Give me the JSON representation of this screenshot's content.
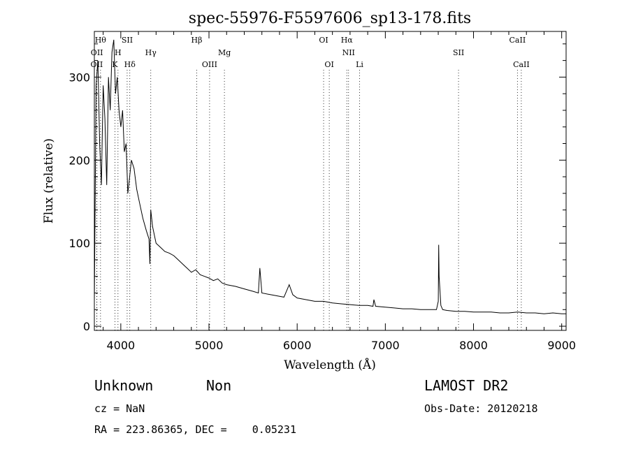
{
  "chart_data": {
    "type": "line",
    "title": "spec-55976-F5597606_sp13-178.fits",
    "xlabel": "Wavelength (Å)",
    "ylabel": "Flux (relative)",
    "xlim": [
      3700,
      9050
    ],
    "ylim": [
      -5,
      355
    ],
    "grid": false,
    "xticks": [
      4000,
      5000,
      6000,
      7000,
      8000,
      9000
    ],
    "yticks": [
      0,
      100,
      200,
      300
    ],
    "series": [
      {
        "x": [
          3700,
          3720,
          3740,
          3760,
          3780,
          3800,
          3820,
          3840,
          3860,
          3880,
          3900,
          3920,
          3940,
          3960,
          3980,
          4000,
          4020,
          4040,
          4060,
          4080,
          4100,
          4120,
          4150,
          4180,
          4210,
          4250,
          4290,
          4320,
          4330,
          4340,
          4360,
          4380,
          4400,
          4450,
          4500,
          4550,
          4600,
          4650,
          4700,
          4750,
          4800,
          4850,
          4900,
          4950,
          5000,
          5050,
          5100,
          5150,
          5200,
          5300,
          5400,
          5500,
          5560,
          5577,
          5600,
          5700,
          5800,
          5850,
          5890,
          5910,
          5950,
          6000,
          6100,
          6200,
          6300,
          6400,
          6500,
          6600,
          6700,
          6800,
          6860,
          6870,
          6890,
          7000,
          7100,
          7200,
          7300,
          7400,
          7500,
          7580,
          7600,
          7605,
          7610,
          7630,
          7650,
          7700,
          7800,
          7900,
          8000,
          8100,
          8200,
          8300,
          8400,
          8500,
          8600,
          8700,
          8800,
          8900,
          9000,
          9050
        ],
        "values": [
          30,
          290,
          320,
          220,
          170,
          290,
          250,
          170,
          300,
          260,
          330,
          345,
          280,
          300,
          260,
          240,
          260,
          210,
          220,
          160,
          180,
          200,
          190,
          165,
          150,
          130,
          115,
          105,
          75,
          140,
          120,
          110,
          100,
          95,
          90,
          88,
          85,
          80,
          75,
          70,
          65,
          68,
          62,
          60,
          58,
          55,
          57,
          52,
          50,
          48,
          45,
          42,
          40,
          70,
          40,
          38,
          36,
          35,
          45,
          50,
          38,
          34,
          32,
          30,
          30,
          28,
          27,
          26,
          25,
          25,
          24,
          32,
          24,
          23,
          22,
          21,
          21,
          20,
          20,
          20,
          30,
          98,
          60,
          25,
          20,
          19,
          18,
          18,
          17,
          17,
          17,
          16,
          16,
          17,
          16,
          16,
          15,
          16,
          15,
          15
        ]
      }
    ],
    "lines": [
      {
        "x": 3727,
        "label": "OII",
        "row": 2
      },
      {
        "x": 3729,
        "label": "OII",
        "row": 1
      },
      {
        "x": 3770,
        "label": "Hθ",
        "row": 0
      },
      {
        "x": 3933,
        "label": "K",
        "row": 2
      },
      {
        "x": 3968,
        "label": "H",
        "row": 1
      },
      {
        "x": 4072,
        "label": "SII",
        "row": 0
      },
      {
        "x": 4102,
        "label": "Hδ",
        "row": 2
      },
      {
        "x": 4340,
        "label": "Hγ",
        "row": 1
      },
      {
        "x": 4861,
        "label": "Hβ",
        "row": 0
      },
      {
        "x": 5007,
        "label": "OIII",
        "row": 2
      },
      {
        "x": 5175,
        "label": "Mg",
        "row": 1
      },
      {
        "x": 6300,
        "label": "OI",
        "row": 0
      },
      {
        "x": 6364,
        "label": "OI",
        "row": 2
      },
      {
        "x": 6563,
        "label": "Hα",
        "row": 0
      },
      {
        "x": 6583,
        "label": "NII",
        "row": 1
      },
      {
        "x": 6708,
        "label": "Li",
        "row": 2
      },
      {
        "x": 7830,
        "label": "SII",
        "row": 1
      },
      {
        "x": 8498,
        "label": "CaII",
        "row": 0
      },
      {
        "x": 8542,
        "label": "CaII",
        "row": 2
      }
    ]
  },
  "info": {
    "class_label": "Unknown",
    "subclass_label": "Non",
    "survey": "LAMOST DR2",
    "cz": "cz = NaN",
    "obs_date": "Obs-Date: 20120218",
    "coords": "RA = 223.86365, DEC =    0.05231"
  }
}
